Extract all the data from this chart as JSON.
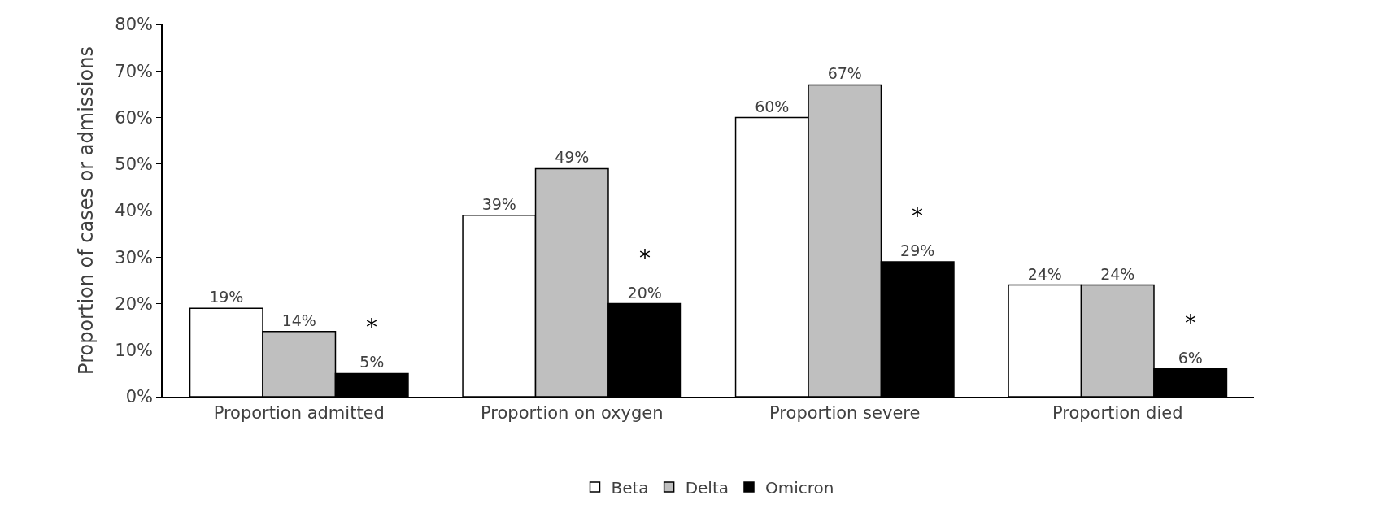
{
  "chart_data": {
    "type": "bar",
    "ylabel": "Proportion of cases or admissions",
    "categories": [
      "Proportion admitted",
      "Proportion on oxygen",
      "Proportion severe",
      "Proportion died"
    ],
    "series": [
      {
        "name": "Beta",
        "color": "#ffffff",
        "values": [
          19,
          39,
          60,
          24
        ],
        "value_labels": [
          "19%",
          "39%",
          "60%",
          "24%"
        ]
      },
      {
        "name": "Delta",
        "color": "#bfbfbf",
        "values": [
          14,
          49,
          67,
          24
        ],
        "value_labels": [
          "14%",
          "49%",
          "67%",
          "24%"
        ]
      },
      {
        "name": "Omicron",
        "color": "#000000",
        "values": [
          5,
          20,
          29,
          6
        ],
        "value_labels": [
          "5%",
          "20%",
          "29%",
          "6%"
        ]
      }
    ],
    "annotations": [
      "*",
      "*",
      "*",
      "*"
    ],
    "ylim": [
      0,
      80
    ],
    "yticks": [
      {
        "value": 0,
        "label": "0%"
      },
      {
        "value": 10,
        "label": "10%"
      },
      {
        "value": 20,
        "label": "20%"
      },
      {
        "value": 30,
        "label": "30%"
      },
      {
        "value": 40,
        "label": "40%"
      },
      {
        "value": 50,
        "label": "50%"
      },
      {
        "value": 60,
        "label": "60%"
      },
      {
        "value": 70,
        "label": "70%"
      },
      {
        "value": 80,
        "label": "80%"
      }
    ],
    "grid": false,
    "legend": "bottom"
  }
}
